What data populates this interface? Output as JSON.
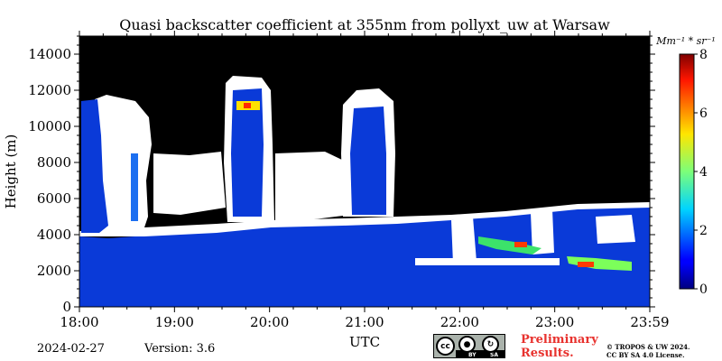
{
  "chart_data": {
    "type": "heatmap",
    "title": "Quasi backscatter coefficient at 355nm from pollyxt_uw at Warsaw",
    "xlabel": "UTC",
    "ylabel": "Height (m)",
    "x_ticks": [
      "18:00",
      "19:00",
      "20:00",
      "21:00",
      "22:00",
      "23:00",
      "23:59"
    ],
    "xlim_hours": [
      18,
      24
    ],
    "y_ticks": [
      0,
      2000,
      4000,
      6000,
      8000,
      10000,
      12000,
      14000
    ],
    "ylim": [
      0,
      15000
    ],
    "colorbar": {
      "unit_label": "Mm⁻¹ * sr⁻¹",
      "ticks": [
        0,
        2,
        4,
        6,
        8
      ],
      "range": [
        0,
        8
      ],
      "colormap": "jet"
    },
    "regions": [
      {
        "time": [
          18.0,
          24.0
        ],
        "height": [
          0,
          4000
        ],
        "value": 0.3
      },
      {
        "time": [
          18.15,
          18.32
        ],
        "height": [
          4000,
          11500
        ],
        "value": 0.5
      },
      {
        "time": [
          19.6,
          19.9
        ],
        "height": [
          4600,
          12200
        ],
        "value": 0.8
      },
      {
        "time": [
          20.9,
          21.2
        ],
        "height": [
          4800,
          11000
        ],
        "value": 0.7
      },
      {
        "time": [
          22.1,
          22.3
        ],
        "height": [
          2700,
          4000
        ],
        "value": 0.4
      },
      {
        "time": [
          23.3,
          23.9
        ],
        "height": [
          2000,
          2800
        ],
        "value": 2.8
      },
      {
        "time": [
          23.5,
          24.0
        ],
        "height": [
          5000,
          5700
        ],
        "value": 0.4
      }
    ]
  },
  "footer": {
    "date": "2024-02-27",
    "version": "Version: 3.6",
    "preliminary_line1": "Preliminary",
    "preliminary_line2": "Results.",
    "copyright_line1": "© TROPOS & UW 2024.",
    "copyright_line2": "CC BY SA 4.0 License.",
    "license_badge": {
      "text_cc": "cc",
      "text_by": "BY",
      "text_sa": "SA",
      "colors": {
        "background": "#aab2ab",
        "strip": "#000000"
      }
    }
  },
  "colors": {
    "background_no_signal": "#000000",
    "low_backscatter": "#0a3ad8",
    "cloud": "#ffffff",
    "preliminary_text": "#e8322e"
  }
}
